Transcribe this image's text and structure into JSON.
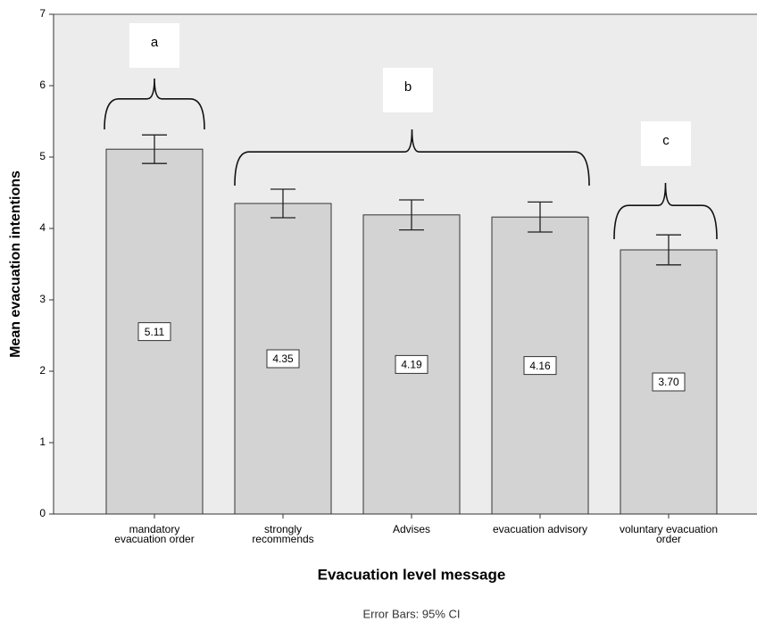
{
  "chart_data": {
    "type": "bar",
    "y_label": "Mean evacuation intentions",
    "x_label": "Evacuation level message",
    "note": "Error Bars: 95% CI",
    "categories": [
      "mandatory\nevacuation order",
      "strongly\nrecommends",
      "Advises",
      "evacuation advisory",
      "voluntary evacuation\norder"
    ],
    "values": [
      5.11,
      4.35,
      4.19,
      4.16,
      3.7
    ],
    "value_labels": [
      "5.11",
      "4.35",
      "4.19",
      "4.16",
      "3.70"
    ],
    "errors": [
      0.2,
      0.2,
      0.21,
      0.21,
      0.21
    ],
    "color": "#d3d3d3",
    "ylim": [
      0,
      7
    ],
    "yticks": [
      0,
      1,
      2,
      3,
      4,
      5,
      6,
      7
    ],
    "annotations": [
      {
        "text": "a"
      },
      {
        "text": "b"
      },
      {
        "text": "c"
      }
    ]
  }
}
